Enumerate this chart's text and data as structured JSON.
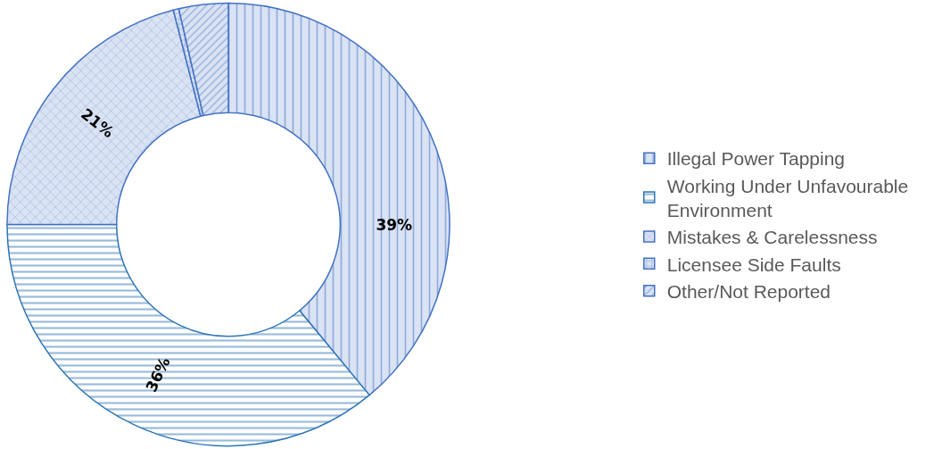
{
  "chart_data": {
    "type": "donut",
    "categories": [
      "Illegal Power Tapping",
      "Working Under Unfavourable Environment",
      "Mistakes & Carelessness",
      "Licensee Side Faults",
      "Other/Not Reported"
    ],
    "values": [
      39,
      36,
      21,
      0.4,
      3.6
    ],
    "colors": [
      "#4472c4",
      "#2e75b6",
      "#4472c4",
      "#4472c4",
      "#4472c4"
    ],
    "value_labels": [
      "39%",
      "36%",
      "21%",
      null,
      null
    ],
    "legend": "right"
  }
}
